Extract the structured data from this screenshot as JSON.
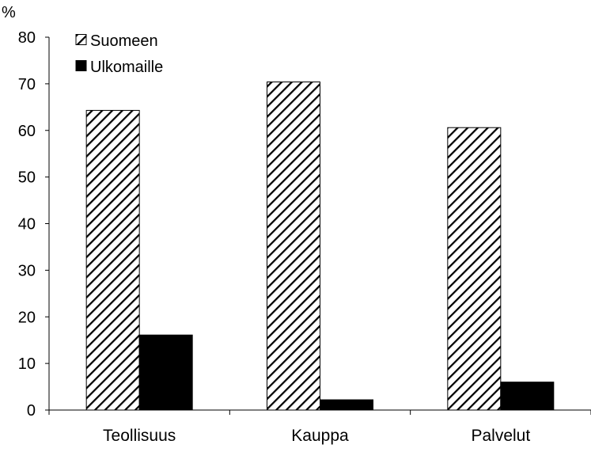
{
  "chart_data": {
    "type": "bar",
    "title": "",
    "xlabel": "",
    "ylabel": "%",
    "ylim": [
      0,
      80
    ],
    "yticks": [
      0,
      10,
      20,
      30,
      40,
      50,
      60,
      70,
      80
    ],
    "grid": false,
    "legend_position": "top-left",
    "categories": [
      "Teollisuus",
      "Kauppa",
      "Palvelut"
    ],
    "series": [
      {
        "name": "Suomeen",
        "values": [
          64.3,
          70.4,
          60.6
        ],
        "color": "#000000",
        "pattern": "diagonal-hatch"
      },
      {
        "name": "Ulkomaille",
        "values": [
          16.1,
          2.2,
          6.0
        ],
        "color": "#000000",
        "pattern": "solid"
      }
    ]
  }
}
